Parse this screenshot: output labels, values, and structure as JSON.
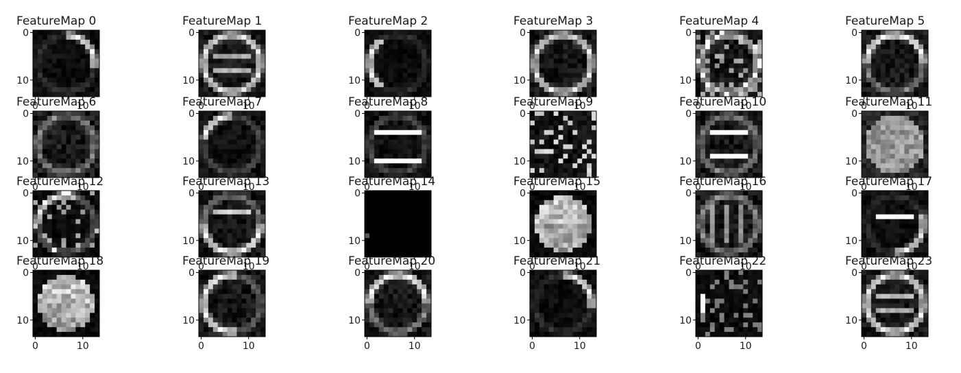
{
  "figure": {
    "type": "heatmap",
    "colormap": "gray",
    "grid": false,
    "rows": 4,
    "cols": 6,
    "y_ticks": [
      "0",
      "10"
    ],
    "x_ticks": [
      "0",
      "10"
    ]
  },
  "chart_data": {
    "type": "heatmap",
    "colormap": "gray",
    "image_size": [
      14,
      14
    ],
    "xlim": [
      0,
      13
    ],
    "ylim": [
      13,
      0
    ],
    "grid": false,
    "panels": [
      {
        "title": "FeatureMap 0",
        "pattern": "arc-right"
      },
      {
        "title": "FeatureMap 1",
        "pattern": "ring-bars"
      },
      {
        "title": "FeatureMap 2",
        "pattern": "arc-left"
      },
      {
        "title": "FeatureMap 3",
        "pattern": "ring"
      },
      {
        "title": "FeatureMap 4",
        "pattern": "ring-speckle"
      },
      {
        "title": "FeatureMap 5",
        "pattern": "ring-top"
      },
      {
        "title": "FeatureMap 6",
        "pattern": "dim-ring"
      },
      {
        "title": "FeatureMap 7",
        "pattern": "arc-topleft"
      },
      {
        "title": "FeatureMap 8",
        "pattern": "bars"
      },
      {
        "title": "FeatureMap 9",
        "pattern": "speckle"
      },
      {
        "title": "FeatureMap 10",
        "pattern": "bars-ring"
      },
      {
        "title": "FeatureMap 11",
        "pattern": "gray-disc"
      },
      {
        "title": "FeatureMap 12",
        "pattern": "arc-topleft-speckle"
      },
      {
        "title": "FeatureMap 13",
        "pattern": "ring-bottom"
      },
      {
        "title": "FeatureMap 14",
        "pattern": "blank"
      },
      {
        "title": "FeatureMap 15",
        "pattern": "bright-disc"
      },
      {
        "title": "FeatureMap 16",
        "pattern": "ring-bars-dim"
      },
      {
        "title": "FeatureMap 17",
        "pattern": "bars-right"
      },
      {
        "title": "FeatureMap 18",
        "pattern": "bright-disc"
      },
      {
        "title": "FeatureMap 19",
        "pattern": "ring-left"
      },
      {
        "title": "FeatureMap 20",
        "pattern": "ring-top"
      },
      {
        "title": "FeatureMap 21",
        "pattern": "arc-right"
      },
      {
        "title": "FeatureMap 22",
        "pattern": "speckle-left"
      },
      {
        "title": "FeatureMap 23",
        "pattern": "ring-bars"
      }
    ]
  }
}
